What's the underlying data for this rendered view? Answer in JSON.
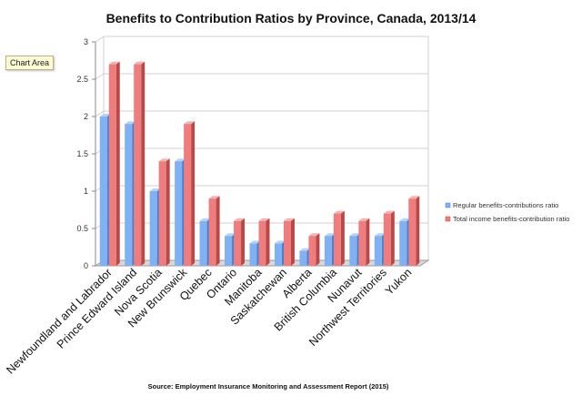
{
  "tooltip": "Chart Area",
  "colors": {
    "regular_front": "#7fb1f3",
    "regular_side": "#4a7fd0",
    "regular_top": "#b4d3fb",
    "total_front": "#ef7d7d",
    "total_side": "#b94848",
    "total_top": "#f7b0b0",
    "axis": "#888888",
    "grid": "#d0d0d0"
  },
  "chart_data": {
    "type": "bar",
    "title": "Benefits to Contribution Ratios by Province, Canada, 2013/14",
    "source": "Source: Employment Insurance Monitoring and Assessment Report (2015)",
    "categories": [
      "Newfoundland and Labrador",
      "Prince Edward Island",
      "Nova Scotia",
      "New Brunswick",
      "Quebec",
      "Ontario",
      "Manitoba",
      "Saskatchewan",
      "Alberta",
      "British Columbia",
      "Nunavut",
      "Northwest Territories",
      "Yukon"
    ],
    "series": [
      {
        "name": "Regular benefits-contributions ratio",
        "values": [
          2.0,
          1.9,
          1.0,
          1.4,
          0.6,
          0.4,
          0.3,
          0.3,
          0.2,
          0.4,
          0.4,
          0.4,
          0.6
        ]
      },
      {
        "name": "Total income benefits-contribution ratio",
        "values": [
          2.7,
          2.7,
          1.4,
          1.9,
          0.9,
          0.6,
          0.6,
          0.6,
          0.4,
          0.7,
          0.6,
          0.7,
          0.9
        ]
      }
    ],
    "yticks": [
      "0",
      "0.5",
      "1",
      "1.5",
      "2",
      "2.5",
      "3"
    ],
    "ylim": [
      0,
      3
    ],
    "xlabel": "",
    "ylabel": "",
    "legend_position": "right"
  }
}
